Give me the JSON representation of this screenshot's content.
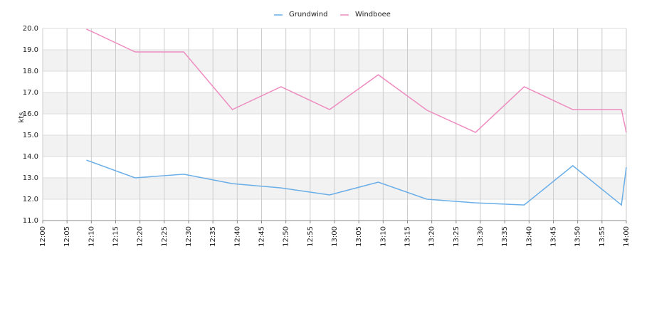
{
  "chart_data": {
    "type": "line",
    "y_label": "kts",
    "x": [
      "12:09",
      "12:19",
      "12:29",
      "12:39",
      "12:49",
      "12:59",
      "13:09",
      "13:19",
      "13:29",
      "13:39",
      "13:49",
      "13:59",
      "14:00"
    ],
    "series": [
      {
        "name": "Grundwind",
        "color": "#6aaee8",
        "values": [
          13.83,
          13.0,
          13.17,
          12.73,
          12.53,
          12.2,
          12.8,
          12.0,
          11.83,
          11.73,
          13.57,
          11.73,
          13.5
        ]
      },
      {
        "name": "Windboee",
        "color": "#ee8cc0",
        "values": [
          19.97,
          18.9,
          18.9,
          16.2,
          17.27,
          16.2,
          17.83,
          16.17,
          15.13,
          17.27,
          16.2,
          16.2,
          15.13
        ]
      }
    ],
    "xlim": [
      "12:00",
      "14:00"
    ],
    "xticks": [
      "12:00",
      "12:05",
      "12:10",
      "12:15",
      "12:20",
      "12:25",
      "12:30",
      "12:35",
      "12:40",
      "12:45",
      "12:50",
      "12:55",
      "13:00",
      "13:05",
      "13:10",
      "13:15",
      "13:20",
      "13:25",
      "13:30",
      "13:35",
      "13:40",
      "13:45",
      "13:50",
      "13:55",
      "14:00"
    ],
    "ylim": [
      11,
      20
    ],
    "yticks": [
      {
        "value": 11,
        "label": "11.0"
      },
      {
        "value": 12,
        "label": "12.0"
      },
      {
        "value": 13,
        "label": "13.0"
      },
      {
        "value": 14,
        "label": "14.0"
      },
      {
        "value": 15,
        "label": "15.0"
      },
      {
        "value": 16,
        "label": "16.0"
      },
      {
        "value": 17,
        "label": "17.0"
      },
      {
        "value": 18,
        "label": "18.0"
      },
      {
        "value": 19,
        "label": "19.0"
      },
      {
        "value": 20,
        "label": "20.0"
      }
    ],
    "grid": true,
    "legend": "top"
  }
}
